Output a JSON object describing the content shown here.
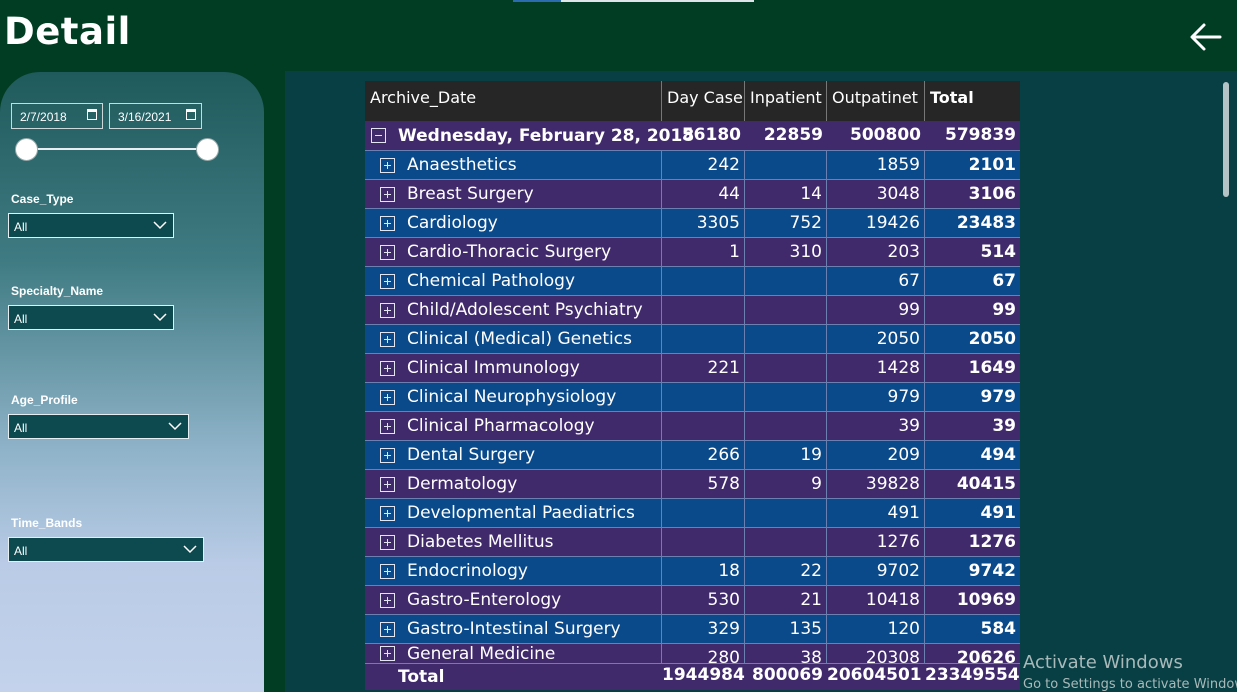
{
  "header": {
    "title": "Detail",
    "back_icon": "arrow-left-icon"
  },
  "filters": {
    "date_start": "2/7/2018",
    "date_end": "3/16/2021",
    "case_type": {
      "label": "Case_Type",
      "value": "All"
    },
    "specialty_name": {
      "label": "Specialty_Name",
      "value": "All"
    },
    "age_profile": {
      "label": "Age_Profile",
      "value": "All"
    },
    "time_bands": {
      "label": "Time_Bands",
      "value": "All"
    }
  },
  "matrix": {
    "columns": [
      "Archive_Date",
      "Day Case",
      "Inpatient",
      "Outpatinet",
      "Total"
    ],
    "group": {
      "label": "Wednesday, February 28, 2018",
      "day_case": "56180",
      "inpatient": "22859",
      "outpatient": "500800",
      "total": "579839"
    },
    "rows": [
      {
        "name": "Anaesthetics",
        "day_case": "242",
        "inpatient": "",
        "outpatient": "1859",
        "total": "2101"
      },
      {
        "name": "Breast Surgery",
        "day_case": "44",
        "inpatient": "14",
        "outpatient": "3048",
        "total": "3106"
      },
      {
        "name": "Cardiology",
        "day_case": "3305",
        "inpatient": "752",
        "outpatient": "19426",
        "total": "23483"
      },
      {
        "name": "Cardio-Thoracic Surgery",
        "day_case": "1",
        "inpatient": "310",
        "outpatient": "203",
        "total": "514"
      },
      {
        "name": "Chemical Pathology",
        "day_case": "",
        "inpatient": "",
        "outpatient": "67",
        "total": "67"
      },
      {
        "name": "Child/Adolescent Psychiatry",
        "day_case": "",
        "inpatient": "",
        "outpatient": "99",
        "total": "99"
      },
      {
        "name": "Clinical (Medical) Genetics",
        "day_case": "",
        "inpatient": "",
        "outpatient": "2050",
        "total": "2050"
      },
      {
        "name": "Clinical Immunology",
        "day_case": "221",
        "inpatient": "",
        "outpatient": "1428",
        "total": "1649"
      },
      {
        "name": "Clinical Neurophysiology",
        "day_case": "",
        "inpatient": "",
        "outpatient": "979",
        "total": "979"
      },
      {
        "name": "Clinical Pharmacology",
        "day_case": "",
        "inpatient": "",
        "outpatient": "39",
        "total": "39"
      },
      {
        "name": "Dental Surgery",
        "day_case": "266",
        "inpatient": "19",
        "outpatient": "209",
        "total": "494"
      },
      {
        "name": "Dermatology",
        "day_case": "578",
        "inpatient": "9",
        "outpatient": "39828",
        "total": "40415"
      },
      {
        "name": "Developmental Paediatrics",
        "day_case": "",
        "inpatient": "",
        "outpatient": "491",
        "total": "491"
      },
      {
        "name": "Diabetes Mellitus",
        "day_case": "",
        "inpatient": "",
        "outpatient": "1276",
        "total": "1276"
      },
      {
        "name": "Endocrinology",
        "day_case": "18",
        "inpatient": "22",
        "outpatient": "9702",
        "total": "9742"
      },
      {
        "name": "Gastro-Enterology",
        "day_case": "530",
        "inpatient": "21",
        "outpatient": "10418",
        "total": "10969"
      },
      {
        "name": "Gastro-Intestinal Surgery",
        "day_case": "329",
        "inpatient": "135",
        "outpatient": "120",
        "total": "584"
      },
      {
        "name": "General Medicine",
        "day_case": "280",
        "inpatient": "38",
        "outpatient": "20308",
        "total": "20626"
      }
    ],
    "totals": {
      "label": "Total",
      "day_case": "1944984",
      "inpatient": "800069",
      "outpatient": "20604501",
      "total": "23349554"
    }
  },
  "watermark": {
    "line1": "Activate Windows",
    "line2": "Go to Settings to activate Windows."
  },
  "colors": {
    "background": "#003d22",
    "row_blue": "#0a4a8a",
    "row_purple": "#412a6b",
    "header": "#262626"
  }
}
